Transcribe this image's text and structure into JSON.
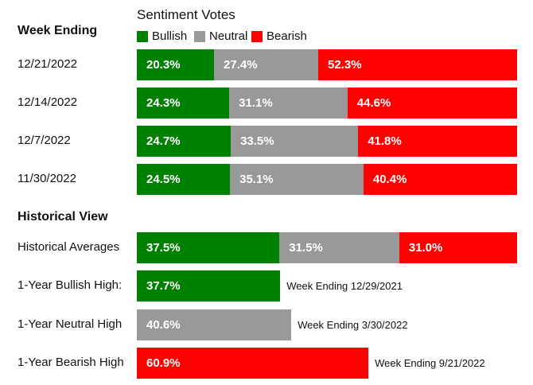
{
  "colors": {
    "bullish": "#008000",
    "neutral": "#999999",
    "bearish": "#ff0000"
  },
  "legend": {
    "title": "Sentiment Votes",
    "items": [
      {
        "key": "bullish",
        "label": "Bullish"
      },
      {
        "key": "neutral",
        "label": "Neutral"
      },
      {
        "key": "bearish",
        "label": "Bearish"
      }
    ]
  },
  "sections": {
    "weekly_header": "Week Ending",
    "historical_header": "Historical View"
  },
  "chart_data": [
    {
      "type": "bar",
      "stacked": true,
      "orientation": "horizontal",
      "categories": [
        "12/21/2022",
        "12/14/2022",
        "12/7/2022",
        "11/30/2022",
        "Historical Averages"
      ],
      "series": [
        {
          "name": "Bullish",
          "values": [
            20.3,
            24.3,
            24.7,
            24.5,
            37.5
          ],
          "labels": [
            "20.3%",
            "24.3%",
            "24.7%",
            "24.5%",
            "37.5%"
          ]
        },
        {
          "name": "Neutral",
          "values": [
            27.4,
            31.1,
            33.5,
            35.1,
            31.5
          ],
          "labels": [
            "27.4%",
            "31.1%",
            "33.5%",
            "35.1%",
            "31.5%"
          ]
        },
        {
          "name": "Bearish",
          "values": [
            52.3,
            44.6,
            41.8,
            40.4,
            31.0
          ],
          "labels": [
            "52.3%",
            "44.6%",
            "41.8%",
            "40.4%",
            "31.0%"
          ]
        }
      ],
      "xlim": [
        0,
        100
      ]
    },
    {
      "type": "bar",
      "orientation": "horizontal",
      "categories": [
        "1-Year Bullish High:",
        "1-Year Neutral High",
        "1-Year Bearish High"
      ],
      "values": [
        37.7,
        40.6,
        60.9
      ],
      "labels": [
        "37.7%",
        "40.6%",
        "60.9%"
      ],
      "series_keys": [
        "bullish",
        "neutral",
        "bearish"
      ],
      "annotations": [
        "Week Ending 12/29/2021",
        "Week Ending 3/30/2022",
        "Week Ending 9/21/2022"
      ],
      "xlim": [
        0,
        100
      ]
    }
  ]
}
